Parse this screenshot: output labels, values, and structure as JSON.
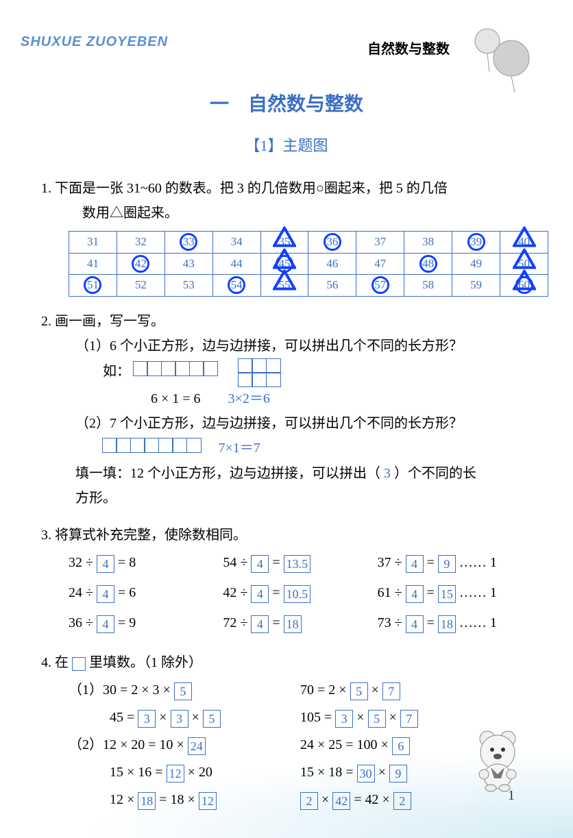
{
  "header": {
    "left_text": "SHUXUE ZUOYEBEN",
    "right_text": "自然数与整数",
    "chapter_title": "一　自然数与整数",
    "section_title": "【1】主题图"
  },
  "colors": {
    "brand_blue": "#3b6fc4",
    "answer_blue": "#3b6fc4",
    "mark_blue": "#1040ff",
    "header_blue": "#5a8fd6"
  },
  "p1": {
    "text_a": "1. 下面是一张 31~60 的数表。把 3 的几倍数用○圈起来，把 5 的几倍",
    "text_b": "数用△圈起来。",
    "table": {
      "rows": [
        [
          31,
          32,
          33,
          34,
          35,
          36,
          37,
          38,
          39,
          40
        ],
        [
          41,
          42,
          43,
          44,
          45,
          46,
          47,
          48,
          49,
          50
        ],
        [
          51,
          52,
          53,
          54,
          55,
          56,
          57,
          58,
          59,
          60
        ]
      ],
      "circles": [
        33,
        36,
        39,
        42,
        45,
        48,
        51,
        54,
        57,
        60
      ],
      "triangles": [
        35,
        40,
        45,
        50,
        55,
        60
      ]
    }
  },
  "p2": {
    "title": "2. 画一画，写一写。",
    "s1": {
      "q": "（1）6 个小正方形，边与边拼接，可以拼出几个不同的长方形？",
      "ex_label": "如：",
      "eq1": "6 × 1 = 6",
      "ans": "3×2＝6"
    },
    "s2": {
      "q": "（2）7 个小正方形，边与边拼接，可以拼出几个不同的长方形？",
      "ans": "7×1＝7"
    },
    "fill": {
      "pre": "填一填：12 个小正方形，边与边拼接，可以拼出（",
      "ans": "3",
      "post": "）个不同的长"
    },
    "fill_line2": "方形。"
  },
  "p3": {
    "title": "3. 将算式补充完整，使除数相同。",
    "rows": [
      [
        {
          "pre": "32 ÷ ",
          "box": "4",
          "eq": " = 8"
        },
        {
          "pre": "54 ÷ ",
          "box": "4",
          "eq": " = ",
          "box2": "13.5"
        },
        {
          "pre": "37 ÷ ",
          "box": "4",
          "eq": " = ",
          "box2": "9",
          "tail": " …… 1"
        }
      ],
      [
        {
          "pre": "24 ÷ ",
          "box": "4",
          "eq": " = 6"
        },
        {
          "pre": "42 ÷ ",
          "box": "4",
          "eq": " = ",
          "box2": "10.5"
        },
        {
          "pre": "61 ÷ ",
          "box": "4",
          "eq": " = ",
          "box2": "15",
          "tail": " …… 1"
        }
      ],
      [
        {
          "pre": "36 ÷ ",
          "box": "4",
          "eq": " = 9"
        },
        {
          "pre": "72 ÷ ",
          "box": "4",
          "eq": " = ",
          "box2": "18"
        },
        {
          "pre": "73 ÷ ",
          "box": "4",
          "eq": " = ",
          "box2": "18",
          "tail": " …… 1"
        }
      ]
    ]
  },
  "p4": {
    "title_pre": "4. 在 ",
    "title_post": " 里填数。（1 除外）",
    "s1_label": "（1）",
    "s2_label": "（2）",
    "left": [
      {
        "pre": "30 = 2 × 3 × ",
        "boxes": [
          "5"
        ]
      },
      {
        "pre": "45 = ",
        "boxes": [
          "3",
          "3",
          "5"
        ],
        "sep": " × "
      },
      {
        "pre": "12 × 20 = 10 × ",
        "boxes": [
          "24"
        ]
      },
      {
        "pre": "15 × 16 = ",
        "boxes": [
          "12"
        ],
        "post": " × 20"
      },
      {
        "pre": "12 × ",
        "boxes": [
          "18"
        ],
        "mid": " = 18 × ",
        "boxes2": [
          "12"
        ]
      }
    ],
    "right": [
      {
        "pre": "70 = 2 × ",
        "boxes": [
          "5",
          "7"
        ],
        "sep": " × "
      },
      {
        "pre": "105 = ",
        "boxes": [
          "3",
          "5",
          "7"
        ],
        "sep": " × "
      },
      {
        "pre": "24 × 25 = 100 × ",
        "boxes": [
          "6"
        ]
      },
      {
        "pre": "15 × 18 = ",
        "boxes": [
          "30"
        ],
        "mid": " × ",
        "boxes2": [
          "9"
        ]
      },
      {
        "boxes": [
          "2"
        ],
        "mid": " × ",
        "boxes2": [
          "42"
        ],
        "post2": " = 42 × ",
        "boxes3": [
          "2"
        ]
      }
    ]
  },
  "page_number": "1"
}
